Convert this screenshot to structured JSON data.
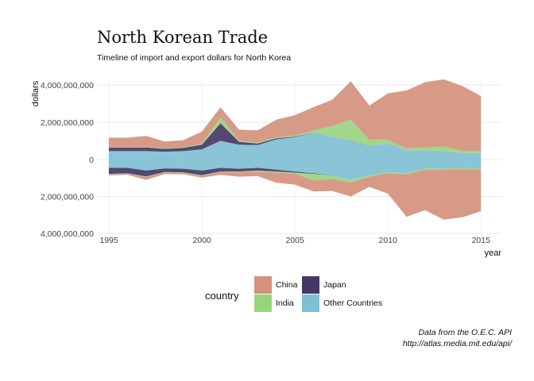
{
  "chart_data": {
    "type": "area",
    "title": "North Korean Trade",
    "subtitle": "Timeline of import and export dollars for North Korea",
    "xlabel": "year",
    "ylabel": "dollars",
    "x": [
      1995,
      1996,
      1997,
      1998,
      1999,
      2000,
      2001,
      2002,
      2003,
      2004,
      2005,
      2006,
      2007,
      2008,
      2009,
      2010,
      2011,
      2012,
      2013,
      2014,
      2015
    ],
    "xticks": [
      "1995",
      "2000",
      "2005",
      "2010",
      "2015"
    ],
    "yticks": [
      "4,000,000,000",
      "2,000,000,000",
      "0",
      "2,000,000,000",
      "4,000,000,000"
    ],
    "xlim": [
      1994.4,
      2016.1
    ],
    "ylim": [
      -4000000000,
      4000000000
    ],
    "grid": true,
    "legend": {
      "title": "country",
      "position": "bottom"
    },
    "series": [
      {
        "name": "Other Countries",
        "color": "#7fbfd4",
        "exports": [
          450000000,
          450000000,
          450000000,
          420000000,
          450000000,
          550000000,
          1000000000,
          800000000,
          780000000,
          1080000000,
          1200000000,
          1450000000,
          1200000000,
          1050000000,
          750000000,
          850000000,
          500000000,
          500000000,
          450000000,
          350000000,
          350000000
        ],
        "imports": [
          450000000,
          450000000,
          600000000,
          480000000,
          500000000,
          600000000,
          450000000,
          500000000,
          450000000,
          550000000,
          650000000,
          750000000,
          850000000,
          1100000000,
          850000000,
          700000000,
          750000000,
          500000000,
          500000000,
          450000000,
          450000000
        ]
      },
      {
        "name": "Japan",
        "color": "#453866",
        "exports": [
          200000000,
          200000000,
          200000000,
          150000000,
          180000000,
          250000000,
          950000000,
          150000000,
          80000000,
          60000000,
          30000000,
          10000000,
          0,
          0,
          0,
          0,
          0,
          0,
          0,
          0,
          0
        ],
        "imports": [
          330000000,
          300000000,
          320000000,
          200000000,
          200000000,
          250000000,
          200000000,
          150000000,
          150000000,
          100000000,
          60000000,
          30000000,
          5000000,
          0,
          0,
          0,
          0,
          0,
          0,
          0,
          0
        ]
      },
      {
        "name": "India",
        "color": "#98d47e",
        "exports": [
          20000000,
          20000000,
          20000000,
          20000000,
          30000000,
          50000000,
          300000000,
          50000000,
          50000000,
          50000000,
          50000000,
          100000000,
          600000000,
          1100000000,
          300000000,
          200000000,
          100000000,
          150000000,
          250000000,
          100000000,
          100000000
        ],
        "imports": [
          30000000,
          30000000,
          30000000,
          30000000,
          30000000,
          30000000,
          30000000,
          30000000,
          50000000,
          50000000,
          50000000,
          350000000,
          200000000,
          150000000,
          80000000,
          50000000,
          50000000,
          50000000,
          50000000,
          80000000,
          100000000
        ]
      },
      {
        "name": "China",
        "color": "#d4917c",
        "exports": [
          500000000,
          500000000,
          600000000,
          380000000,
          380000000,
          650000000,
          550000000,
          600000000,
          650000000,
          950000000,
          1100000000,
          1250000000,
          1400000000,
          2050000000,
          1850000000,
          2500000000,
          3100000000,
          3500000000,
          3600000000,
          3500000000,
          2950000000
        ],
        "imports": [
          50000000,
          50000000,
          150000000,
          80000000,
          70000000,
          100000000,
          150000000,
          250000000,
          250000000,
          550000000,
          600000000,
          600000000,
          650000000,
          750000000,
          550000000,
          1100000000,
          2300000000,
          2200000000,
          2700000000,
          2600000000,
          2250000000
        ]
      }
    ]
  },
  "legend_labels": {
    "china": "China",
    "japan": "Japan",
    "india": "India",
    "other": "Other Countries"
  },
  "caption": {
    "line1": "Data from the O.E.C. API",
    "line2": "http://atlas.media.mit.edu/api/"
  }
}
